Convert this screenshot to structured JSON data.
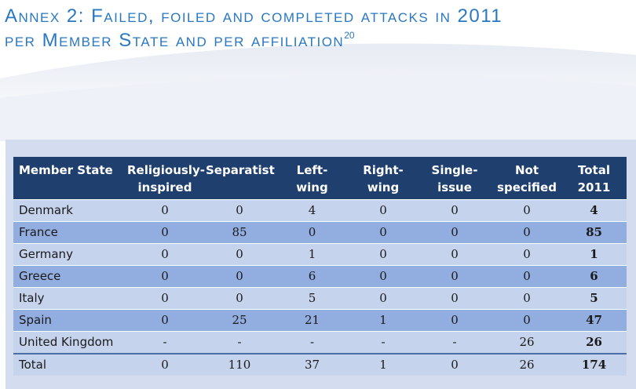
{
  "title": {
    "line1": "Annex 2: Failed, foiled and completed attacks in 2011",
    "line2": "per Member State and per affiliation",
    "footnote": "20"
  },
  "table": {
    "headers": [
      "Member State",
      "Religiously-\ninspired",
      "Separatist",
      "Left-\nwing",
      "Right-\nwing",
      "Single-\nissue",
      "Not\nspecified",
      "Total\n2011"
    ],
    "rows": [
      {
        "state": "Denmark",
        "values": [
          "0",
          "0",
          "4",
          "0",
          "0",
          "0",
          "4"
        ]
      },
      {
        "state": "France",
        "values": [
          "0",
          "85",
          "0",
          "0",
          "0",
          "0",
          "85"
        ]
      },
      {
        "state": "Germany",
        "values": [
          "0",
          "0",
          "1",
          "0",
          "0",
          "0",
          "1"
        ]
      },
      {
        "state": "Greece",
        "values": [
          "0",
          "0",
          "6",
          "0",
          "0",
          "0",
          "6"
        ]
      },
      {
        "state": "Italy",
        "values": [
          "0",
          "0",
          "5",
          "0",
          "0",
          "0",
          "5"
        ]
      },
      {
        "state": "Spain",
        "values": [
          "0",
          "25",
          "21",
          "1",
          "0",
          "0",
          "47"
        ]
      },
      {
        "state": "United Kingdom",
        "values": [
          "-",
          "-",
          "-",
          "-",
          "-",
          "26",
          "26"
        ]
      }
    ],
    "total_row": {
      "state": "Total",
      "values": [
        "0",
        "110",
        "37",
        "1",
        "0",
        "26",
        "174"
      ]
    }
  },
  "colors": {
    "title": "#2a78c2",
    "header_bg": "#1f3f6e",
    "row_light": "#c6d3ec",
    "row_dark": "#92aee0",
    "panel_bg": "#d4ddf0"
  }
}
